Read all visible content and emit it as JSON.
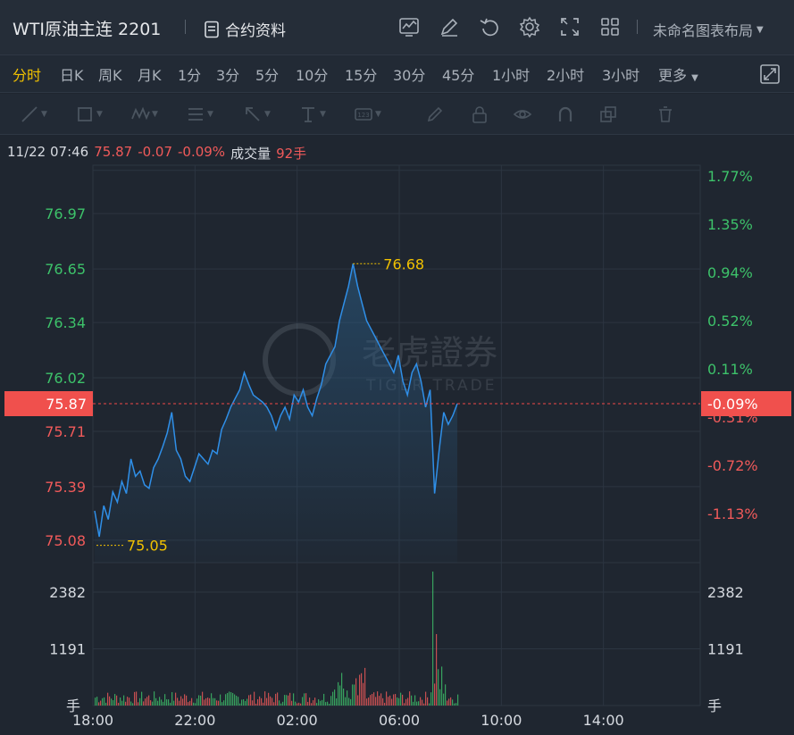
{
  "header": {
    "title": "WTI原油主连 2201",
    "contract_label": "合约资料",
    "layout_name": "未命名图表布局",
    "icons": [
      "chart-icon",
      "edit-icon",
      "undo-icon",
      "settings-icon",
      "expand-icon",
      "grid-icon"
    ]
  },
  "timeframes": [
    "分时",
    "日K",
    "周K",
    "月K",
    "1分",
    "3分",
    "5分",
    "10分",
    "15分",
    "30分",
    "45分",
    "1小时",
    "2小时",
    "3小时",
    "更多"
  ],
  "active_timeframe": "分时",
  "info": {
    "datetime": "11/22 07:46",
    "price": "75.87",
    "change": "-0.07",
    "change_pct": "-0.09%",
    "volume_label": "成交量",
    "volume": "92手"
  },
  "watermark": {
    "cn": "老虎證券",
    "en": "TIGER TRADE"
  },
  "chart_data": {
    "type": "line",
    "price_left_ticks": [
      "76.97",
      "76.65",
      "76.34",
      "76.02",
      "75.71",
      "75.39",
      "75.08"
    ],
    "price_left_values": [
      76.97,
      76.65,
      76.34,
      76.02,
      75.71,
      75.39,
      75.08
    ],
    "pct_right_ticks": [
      "1.77%",
      "1.35%",
      "0.94%",
      "0.52%",
      "0.11%",
      "-0.31%",
      "-0.72%",
      "-1.13%"
    ],
    "pct_right_values": [
      1.77,
      1.35,
      0.94,
      0.52,
      0.11,
      -0.31,
      -0.72,
      -1.13
    ],
    "current_price": "75.87",
    "current_pct": "-0.09%",
    "high_label": "76.68",
    "low_label": "75.05",
    "high_value": 76.68,
    "low_value": 75.05,
    "ylim": [
      74.95,
      77.25
    ],
    "time_ticks": [
      "18:00",
      "22:00",
      "02:00",
      "06:00",
      "10:00",
      "14:00"
    ],
    "volume_ticks": [
      "2382",
      "1191"
    ],
    "volume_values": [
      2382,
      1191
    ],
    "volume_unit": "手",
    "series": [
      {
        "values": [
          75.25,
          75.1,
          75.28,
          75.2,
          75.36,
          75.3,
          75.42,
          75.35,
          75.55,
          75.45,
          75.48,
          75.4,
          75.38,
          75.5,
          75.55,
          75.62,
          75.7,
          75.82,
          75.6,
          75.55,
          75.45,
          75.42,
          75.5,
          75.58,
          75.55,
          75.52,
          75.6,
          75.58,
          75.72,
          75.78,
          75.85,
          75.9,
          75.95,
          76.05,
          75.98,
          75.92,
          75.9,
          75.88,
          75.85,
          75.8,
          75.72,
          75.8,
          75.85,
          75.78,
          75.92,
          75.88,
          75.95,
          75.85,
          75.8,
          75.9,
          75.98,
          76.1,
          76.15,
          76.2,
          76.35,
          76.45,
          76.55,
          76.68,
          76.55,
          76.45,
          76.35,
          76.3,
          76.25,
          76.2,
          76.15,
          76.1,
          76.05,
          76.15,
          76.0,
          75.92,
          76.05,
          76.1,
          76.0,
          75.85,
          75.95,
          75.35,
          75.6,
          75.82,
          75.75,
          75.8,
          75.87
        ]
      }
    ]
  }
}
